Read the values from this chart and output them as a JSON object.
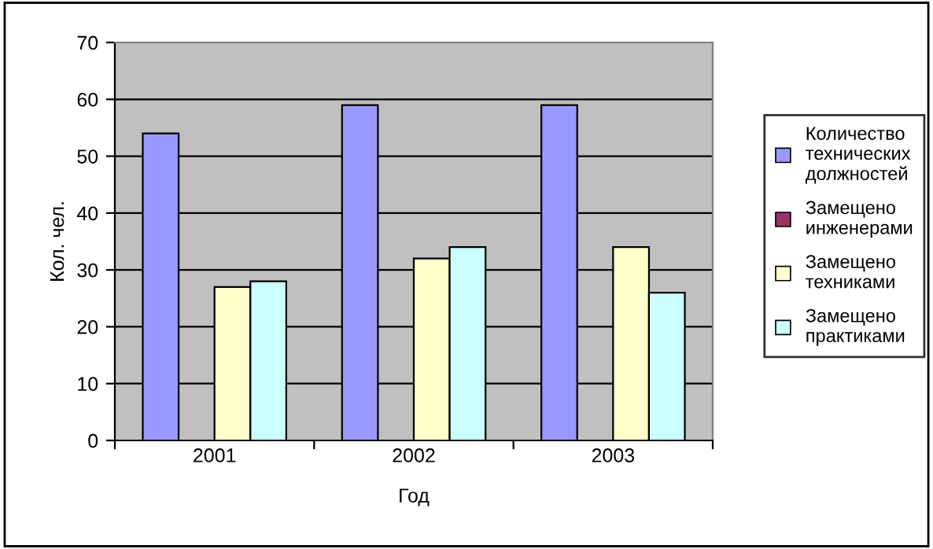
{
  "chart_data": {
    "type": "bar",
    "ylabel": "Кол. чел.",
    "xlabel": "Год",
    "categories": [
      "2001",
      "2002",
      "2003"
    ],
    "series": [
      {
        "name": "Количество\nтехнических\nдолжностей",
        "color": "#9999ff",
        "values": [
          54,
          59,
          59
        ]
      },
      {
        "name": "Замещено\nинженерами",
        "color": "#993366",
        "values": [
          null,
          null,
          null
        ]
      },
      {
        "name": "Замещено\nтехниками",
        "color": "#ffffcc",
        "values": [
          27,
          32,
          34
        ]
      },
      {
        "name": "Замещено\nпрактиками",
        "color": "#ccffff",
        "values": [
          28,
          34,
          26
        ]
      }
    ],
    "ylim": [
      0,
      70
    ],
    "yticks": [
      0,
      10,
      20,
      30,
      40,
      50,
      60,
      70
    ],
    "grid": "y",
    "legend": "right"
  }
}
